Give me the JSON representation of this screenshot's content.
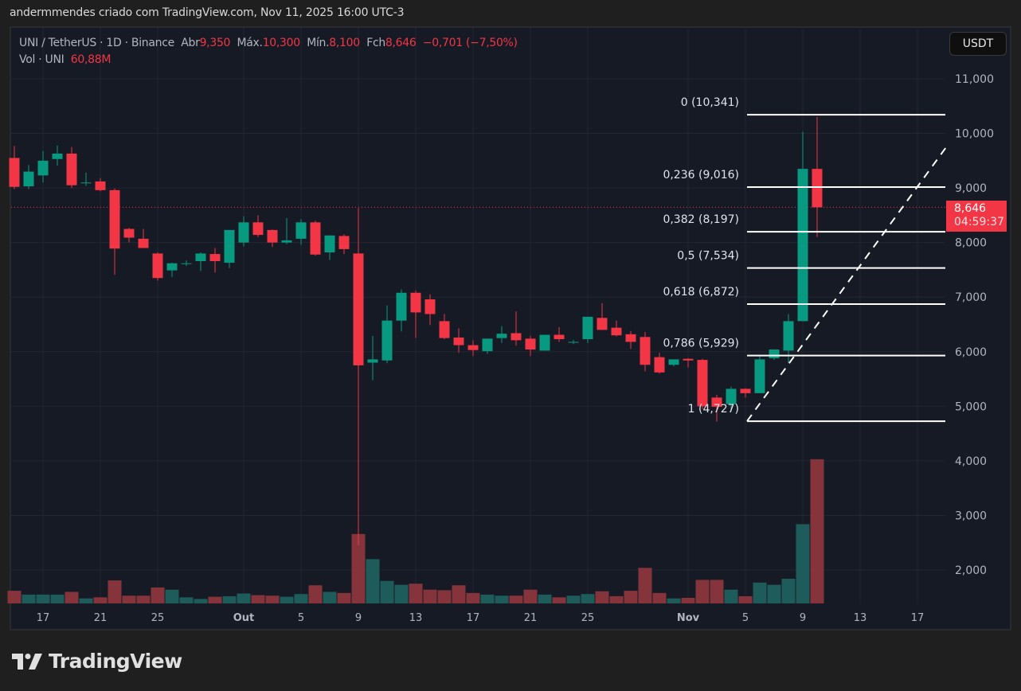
{
  "attribution": "andermmendes criado com TradingView.com, Nov 11, 2025 16:00 UTC-3",
  "legend": {
    "symbol": "UNI / TetherUS · 1D · Binance",
    "open_label": "Abr",
    "open": "9,350",
    "high_label": "Máx.",
    "high": "10,300",
    "low_label": "Mín.",
    "low": "8,100",
    "close_label": "Fch",
    "close": "8,646",
    "change": "−0,701 (−7,50%)",
    "volume_label": "Vol · UNI",
    "volume": "60,88M"
  },
  "currency_button": "USDT",
  "last_price": {
    "price": "8,646",
    "countdown": "04:59:37"
  },
  "logo": {
    "text": "TradingView"
  },
  "colors": {
    "up": "#089981",
    "down": "#f23645",
    "up_vol": "#1d5c5a",
    "down_vol": "#85343b",
    "background": "#161a25",
    "grid": "#232632"
  },
  "chart_data": {
    "type": "candlestick",
    "title": "UNI / TetherUS · 1D · Binance",
    "xlabel": "",
    "ylabel": "USDT",
    "ylim": [
      1400,
      11800
    ],
    "y_ticks": [
      "11,000",
      "10,000",
      "9,000",
      "8,000",
      "7,000",
      "6,000",
      "5,000",
      "4,000",
      "3,000",
      "2,000"
    ],
    "y_tick_values": [
      11000,
      10000,
      9000,
      8000,
      7000,
      6000,
      5000,
      4000,
      3000,
      2000
    ],
    "x_ticks": [
      {
        "label": "17",
        "day": 2
      },
      {
        "label": "21",
        "day": 6
      },
      {
        "label": "25",
        "day": 10
      },
      {
        "label": "Out",
        "day": 16,
        "bold": true
      },
      {
        "label": "5",
        "day": 20
      },
      {
        "label": "9",
        "day": 24
      },
      {
        "label": "13",
        "day": 28
      },
      {
        "label": "17",
        "day": 32
      },
      {
        "label": "21",
        "day": 36
      },
      {
        "label": "25",
        "day": 40
      },
      {
        "label": "Nov",
        "day": 47,
        "bold": true
      },
      {
        "label": "5",
        "day": 51
      },
      {
        "label": "9",
        "day": 55
      },
      {
        "label": "13",
        "day": 59
      },
      {
        "label": "17",
        "day": 63
      }
    ],
    "candles_start": "Sep 15",
    "candles": [
      {
        "o": 9.55,
        "h": 9.77,
        "l": 8.98,
        "c": 9.02,
        "v": 1.62
      },
      {
        "o": 9.03,
        "h": 9.42,
        "l": 8.98,
        "c": 9.3,
        "v": 1.55
      },
      {
        "o": 9.23,
        "h": 9.68,
        "l": 9.1,
        "c": 9.5,
        "v": 1.55
      },
      {
        "o": 9.53,
        "h": 9.78,
        "l": 9.41,
        "c": 9.63,
        "v": 1.55
      },
      {
        "o": 9.63,
        "h": 9.75,
        "l": 9.0,
        "c": 9.05,
        "v": 1.6
      },
      {
        "o": 9.1,
        "h": 9.28,
        "l": 9.04,
        "c": 9.1,
        "v": 1.48
      },
      {
        "o": 9.12,
        "h": 9.18,
        "l": 8.94,
        "c": 8.96,
        "v": 1.5
      },
      {
        "o": 8.96,
        "h": 8.99,
        "l": 7.41,
        "c": 7.89,
        "v": 1.81
      },
      {
        "o": 8.25,
        "h": 8.27,
        "l": 8.0,
        "c": 8.09,
        "v": 1.53
      },
      {
        "o": 8.07,
        "h": 8.25,
        "l": 7.9,
        "c": 7.9,
        "v": 1.53
      },
      {
        "o": 7.8,
        "h": 7.82,
        "l": 7.3,
        "c": 7.35,
        "v": 1.68
      },
      {
        "o": 7.49,
        "h": 7.63,
        "l": 7.37,
        "c": 7.62,
        "v": 1.64
      },
      {
        "o": 7.62,
        "h": 7.67,
        "l": 7.57,
        "c": 7.62,
        "v": 1.5
      },
      {
        "o": 7.66,
        "h": 7.82,
        "l": 7.48,
        "c": 7.8,
        "v": 1.47
      },
      {
        "o": 7.79,
        "h": 7.9,
        "l": 7.45,
        "c": 7.66,
        "v": 1.51
      },
      {
        "o": 7.63,
        "h": 8.23,
        "l": 7.53,
        "c": 8.23,
        "v": 1.52
      },
      {
        "o": 8.0,
        "h": 8.48,
        "l": 7.93,
        "c": 8.37,
        "v": 1.57
      },
      {
        "o": 8.37,
        "h": 8.5,
        "l": 8.1,
        "c": 8.14,
        "v": 1.54
      },
      {
        "o": 8.23,
        "h": 8.24,
        "l": 7.92,
        "c": 8.0,
        "v": 1.53
      },
      {
        "o": 8.0,
        "h": 8.45,
        "l": 7.97,
        "c": 8.04,
        "v": 1.51
      },
      {
        "o": 8.07,
        "h": 8.43,
        "l": 7.96,
        "c": 8.37,
        "v": 1.56
      },
      {
        "o": 8.37,
        "h": 8.4,
        "l": 7.76,
        "c": 7.78,
        "v": 1.72
      },
      {
        "o": 7.82,
        "h": 8.13,
        "l": 7.68,
        "c": 8.13,
        "v": 1.6
      },
      {
        "o": 8.12,
        "h": 8.15,
        "l": 7.79,
        "c": 7.88,
        "v": 1.58
      },
      {
        "o": 7.8,
        "h": 8.63,
        "l": 2.46,
        "c": 5.75,
        "v": 2.66
      },
      {
        "o": 5.8,
        "h": 6.29,
        "l": 5.48,
        "c": 5.86,
        "v": 2.2
      },
      {
        "o": 5.84,
        "h": 6.85,
        "l": 5.79,
        "c": 6.57,
        "v": 1.8
      },
      {
        "o": 6.57,
        "h": 7.14,
        "l": 6.37,
        "c": 7.08,
        "v": 1.73
      },
      {
        "o": 7.08,
        "h": 7.12,
        "l": 6.25,
        "c": 6.72,
        "v": 1.75
      },
      {
        "o": 6.96,
        "h": 7.05,
        "l": 6.49,
        "c": 6.69,
        "v": 1.64
      },
      {
        "o": 6.56,
        "h": 6.69,
        "l": 6.23,
        "c": 6.25,
        "v": 1.63
      },
      {
        "o": 6.26,
        "h": 6.43,
        "l": 5.98,
        "c": 6.12,
        "v": 1.72
      },
      {
        "o": 6.12,
        "h": 6.21,
        "l": 5.92,
        "c": 6.03,
        "v": 1.58
      },
      {
        "o": 6.01,
        "h": 6.24,
        "l": 5.96,
        "c": 6.24,
        "v": 1.55
      },
      {
        "o": 6.25,
        "h": 6.47,
        "l": 6.16,
        "c": 6.33,
        "v": 1.53
      },
      {
        "o": 6.34,
        "h": 6.74,
        "l": 6.11,
        "c": 6.21,
        "v": 1.53
      },
      {
        "o": 6.24,
        "h": 6.29,
        "l": 5.92,
        "c": 6.04,
        "v": 1.64
      },
      {
        "o": 6.02,
        "h": 6.31,
        "l": 6.02,
        "c": 6.31,
        "v": 1.55
      },
      {
        "o": 6.31,
        "h": 6.45,
        "l": 6.18,
        "c": 6.23,
        "v": 1.5
      },
      {
        "o": 6.18,
        "h": 6.22,
        "l": 6.14,
        "c": 6.18,
        "v": 1.53
      },
      {
        "o": 6.23,
        "h": 6.64,
        "l": 6.16,
        "c": 6.64,
        "v": 1.56
      },
      {
        "o": 6.62,
        "h": 6.89,
        "l": 6.4,
        "c": 6.4,
        "v": 1.61
      },
      {
        "o": 6.44,
        "h": 6.57,
        "l": 6.28,
        "c": 6.3,
        "v": 1.52
      },
      {
        "o": 6.32,
        "h": 6.38,
        "l": 6.05,
        "c": 6.18,
        "v": 1.62
      },
      {
        "o": 6.27,
        "h": 6.36,
        "l": 5.64,
        "c": 5.76,
        "v": 2.04
      },
      {
        "o": 5.9,
        "h": 5.98,
        "l": 5.6,
        "c": 5.62,
        "v": 1.58
      },
      {
        "o": 5.76,
        "h": 5.85,
        "l": 5.73,
        "c": 5.86,
        "v": 1.48
      },
      {
        "o": 5.87,
        "h": 5.88,
        "l": 5.71,
        "c": 5.84,
        "v": 1.49
      },
      {
        "o": 5.85,
        "h": 5.87,
        "l": 4.95,
        "c": 5.0,
        "v": 1.82
      },
      {
        "o": 5.16,
        "h": 5.21,
        "l": 4.72,
        "c": 4.99,
        "v": 1.82
      },
      {
        "o": 5.04,
        "h": 5.36,
        "l": 4.9,
        "c": 5.32,
        "v": 1.64
      },
      {
        "o": 5.32,
        "h": 5.33,
        "l": 5.16,
        "c": 5.24,
        "v": 1.52
      },
      {
        "o": 5.24,
        "h": 5.93,
        "l": 5.24,
        "c": 5.86,
        "v": 1.77
      },
      {
        "o": 5.88,
        "h": 6.04,
        "l": 5.85,
        "c": 6.04,
        "v": 1.73
      },
      {
        "o": 6.02,
        "h": 6.69,
        "l": 5.79,
        "c": 6.56,
        "v": 1.84
      },
      {
        "o": 6.56,
        "h": 10.03,
        "l": 6.56,
        "c": 9.35,
        "v": 2.84
      },
      {
        "o": 9.35,
        "h": 10.3,
        "l": 8.1,
        "c": 8.646,
        "v": 4.03
      }
    ],
    "fibonacci": {
      "from": {
        "day": 49,
        "price": 4727
      },
      "to": {
        "price": 10341
      },
      "levels": [
        {
          "label": "0 (10,341)",
          "ratio": 0,
          "price": 10341
        },
        {
          "label": "0,236 (9,016)",
          "ratio": 0.236,
          "price": 9016
        },
        {
          "label": "0,382 (8,197)",
          "ratio": 0.382,
          "price": 8197
        },
        {
          "label": "0,5 (7,534)",
          "ratio": 0.5,
          "price": 7534
        },
        {
          "label": "0,618 (6,872)",
          "ratio": 0.618,
          "price": 6872
        },
        {
          "label": "0,786 (5,929)",
          "ratio": 0.786,
          "price": 5929
        },
        {
          "label": "1 (4,727)",
          "ratio": 1,
          "price": 4727
        }
      ]
    },
    "last_price": 8646
  }
}
